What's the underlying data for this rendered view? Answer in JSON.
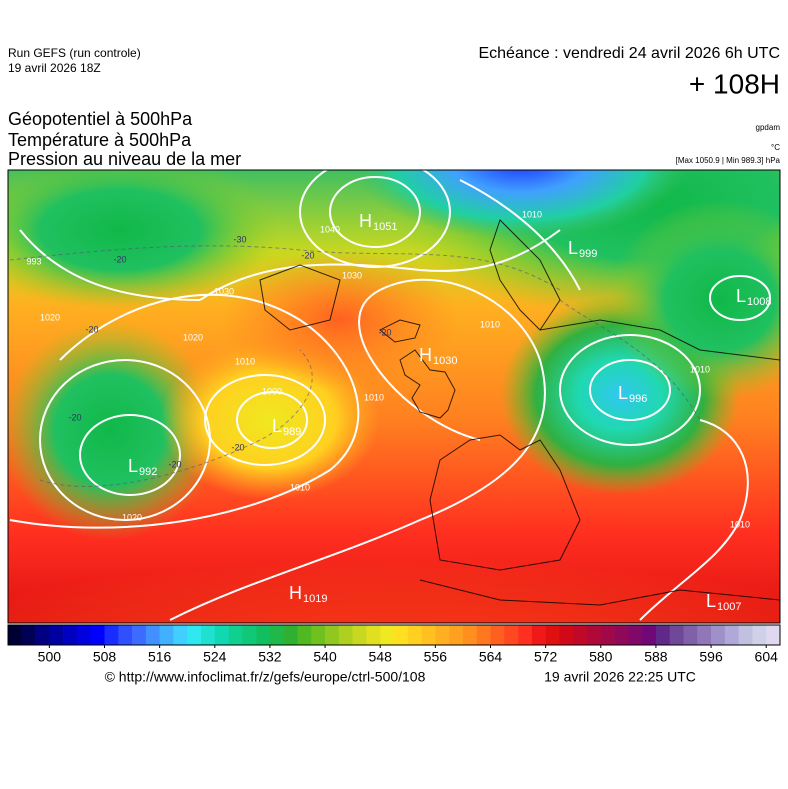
{
  "header": {
    "model": "Run GEFS (run controle)",
    "run_date": "19 avril 2026 18Z",
    "echeance": "Echéance : vendredi 24 avril 2026 6h UTC",
    "lead": "+ 108H"
  },
  "titles": [
    "Géopotentiel à 500hPa",
    "Température à 500hPa",
    "Pression au niveau de la mer"
  ],
  "units": [
    "gpdam",
    "°C",
    "[Max 1050.9 | Min 989.3] hPa"
  ],
  "pressure_centers": [
    {
      "symbol": "H",
      "value": 1051
    },
    {
      "symbol": "L",
      "value": 999
    },
    {
      "symbol": "L",
      "value": 1008
    },
    {
      "symbol": "H",
      "value": 1030
    },
    {
      "symbol": "L",
      "value": 996
    },
    {
      "symbol": "L",
      "value": 989
    },
    {
      "symbol": "L",
      "value": 992
    },
    {
      "symbol": "H",
      "value": 1019
    },
    {
      "symbol": "L",
      "value": 1007
    }
  ],
  "isobar_labels": [
    993,
    1010,
    1020,
    1030,
    1040,
    1030,
    1010,
    1020,
    1000,
    1010,
    1010,
    1020,
    1010,
    1010,
    1010
  ],
  "temperature_labels": [
    -20,
    -30,
    -20,
    -20,
    -20,
    -20,
    -20,
    -20
  ],
  "colorbar": {
    "lim": [
      494,
      606
    ],
    "ticks": [
      500,
      508,
      516,
      524,
      532,
      540,
      548,
      556,
      564,
      572,
      580,
      588,
      596,
      604
    ],
    "colors": [
      "#000033",
      "#000055",
      "#000080",
      "#0000a0",
      "#0000c0",
      "#0000e0",
      "#0000ff",
      "#1a2cff",
      "#3050ff",
      "#3c6cff",
      "#4090ff",
      "#40b0ff",
      "#40d0ff",
      "#30e8f0",
      "#20e0d0",
      "#10d8b0",
      "#10d090",
      "#10c878",
      "#10c060",
      "#20b848",
      "#30b030",
      "#50b820",
      "#70c020",
      "#90c820",
      "#b0d020",
      "#c8d820",
      "#e0e020",
      "#f0e820",
      "#ffe020",
      "#ffd020",
      "#ffc020",
      "#ffb020",
      "#ffa020",
      "#ff9020",
      "#ff7820",
      "#ff6020",
      "#ff4820",
      "#ff3020",
      "#f01818",
      "#e01010",
      "#d00818",
      "#c00828",
      "#b00838",
      "#a00848",
      "#900858",
      "#800868",
      "#700878",
      "#602888",
      "#704898",
      "#8060a8",
      "#9078b8",
      "#a090c8",
      "#b0a8d8",
      "#c0c0e0",
      "#d0d0e8",
      "#e0d8f0"
    ]
  },
  "footer": {
    "source": "© http://www.infoclimat.fr/z/gefs/europe/ctrl-500/108",
    "timestamp": "19 avril 2026 22:25 UTC"
  }
}
